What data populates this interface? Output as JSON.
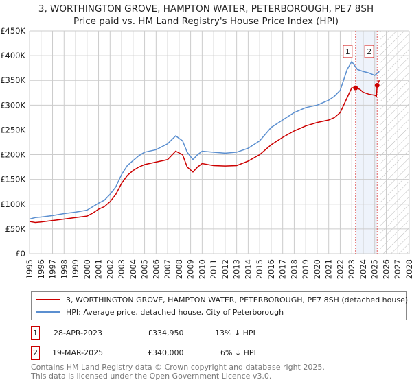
{
  "title": "3, WORTHINGTON GROVE, HAMPTON WATER, PETERBOROUGH, PE7 8SH",
  "subtitle": "Price paid vs. HM Land Registry's House Price Index (HPI)",
  "chart_data": {
    "type": "line",
    "title": "3, WORTHINGTON GROVE, HAMPTON WATER, PETERBOROUGH, PE7 8SH",
    "subtitle": "Price paid vs. HM Land Registry's House Price Index (HPI)",
    "xlim": [
      1995,
      2028
    ],
    "ylim": [
      0,
      450000
    ],
    "yticks": [
      {
        "v": 0,
        "label": "£0"
      },
      {
        "v": 50000,
        "label": "£50K"
      },
      {
        "v": 100000,
        "label": "£100K"
      },
      {
        "v": 150000,
        "label": "£150K"
      },
      {
        "v": 200000,
        "label": "£200K"
      },
      {
        "v": 250000,
        "label": "£250K"
      },
      {
        "v": 300000,
        "label": "£300K"
      },
      {
        "v": 350000,
        "label": "£350K"
      },
      {
        "v": 400000,
        "label": "£400K"
      },
      {
        "v": 450000,
        "label": "£450K"
      }
    ],
    "xticks": [
      "1995",
      "1996",
      "1997",
      "1998",
      "1999",
      "2000",
      "2001",
      "2002",
      "2003",
      "2004",
      "2005",
      "2006",
      "2007",
      "2008",
      "2009",
      "2010",
      "2011",
      "2012",
      "2013",
      "2014",
      "2015",
      "2016",
      "2017",
      "2018",
      "2019",
      "2020",
      "2021",
      "2022",
      "2023",
      "2024",
      "2025",
      "2026",
      "2027",
      "2028"
    ],
    "grid": true,
    "shaded_range": [
      2023.33,
      2025.21
    ],
    "hatched_from": 2025.5,
    "series": [
      {
        "name": "3, WORTHINGTON GROVE, HAMPTON WATER, PETERBOROUGH, PE7 8SH (detached house)",
        "color": "#cc0000",
        "x": [
          1995,
          1995.5,
          1996,
          1997,
          1998,
          1999,
          2000,
          2000.5,
          2001,
          2001.5,
          2002,
          2002.5,
          2003,
          2003.5,
          2004,
          2004.5,
          2005,
          2006,
          2007,
          2007.7,
          2008.3,
          2008.7,
          2009.2,
          2009.6,
          2010,
          2011,
          2012,
          2013,
          2014,
          2015,
          2016,
          2017,
          2018,
          2019,
          2020,
          2021,
          2021.5,
          2022,
          2022.6,
          2023,
          2023.33,
          2023.7,
          2024,
          2024.5,
          2025,
          2025.15,
          2025.21,
          2025.4
        ],
        "y": [
          65000,
          63000,
          64000,
          67000,
          70000,
          73000,
          76000,
          82000,
          90000,
          95000,
          105000,
          120000,
          142000,
          158000,
          168000,
          175000,
          180000,
          185000,
          190000,
          207000,
          200000,
          175000,
          165000,
          175000,
          182000,
          178000,
          177000,
          178000,
          187000,
          200000,
          220000,
          235000,
          248000,
          258000,
          265000,
          270000,
          275000,
          285000,
          315000,
          335000,
          334950,
          332000,
          326000,
          322000,
          320000,
          318000,
          340000,
          350000
        ]
      },
      {
        "name": "HPI: Average price, detached house, City of Peterborough",
        "color": "#5b8fd0",
        "x": [
          1995,
          1995.5,
          1996,
          1997,
          1998,
          1999,
          2000,
          2000.5,
          2001,
          2001.5,
          2002,
          2002.5,
          2003,
          2003.5,
          2004,
          2004.5,
          2005,
          2006,
          2007,
          2007.7,
          2008.3,
          2008.7,
          2009.2,
          2009.6,
          2010,
          2011,
          2012,
          2013,
          2014,
          2015,
          2016,
          2017,
          2018,
          2019,
          2020,
          2021,
          2021.5,
          2022,
          2022.6,
          2023,
          2023.5,
          2024,
          2024.5,
          2025,
          2025.4
        ],
        "y": [
          70000,
          73000,
          74000,
          77000,
          81000,
          84000,
          88000,
          95000,
          102000,
          108000,
          120000,
          135000,
          160000,
          178000,
          188000,
          198000,
          205000,
          210000,
          222000,
          238000,
          228000,
          205000,
          190000,
          200000,
          207000,
          205000,
          203000,
          205000,
          213000,
          228000,
          255000,
          270000,
          285000,
          295000,
          300000,
          310000,
          318000,
          330000,
          372000,
          388000,
          372000,
          368000,
          365000,
          360000,
          368000
        ]
      }
    ],
    "annotations": [
      {
        "label": "1",
        "x": 2023.33
      },
      {
        "label": "2",
        "x": 2025.21
      }
    ],
    "legend_placement": "bottom"
  },
  "sales": [
    {
      "num": "1",
      "date": "28-APR-2023",
      "price": "£334,950",
      "delta": "13% ↓ HPI"
    },
    {
      "num": "2",
      "date": "19-MAR-2025",
      "price": "£340,000",
      "delta": "6% ↓ HPI"
    }
  ],
  "footer": {
    "line1": "Contains HM Land Registry data © Crown copyright and database right 2025.",
    "line2": "This data is licensed under the Open Government Licence v3.0."
  },
  "colors": {
    "red": "#cc0000",
    "blue": "#5b8fd0",
    "shade": "#eef3fb"
  }
}
